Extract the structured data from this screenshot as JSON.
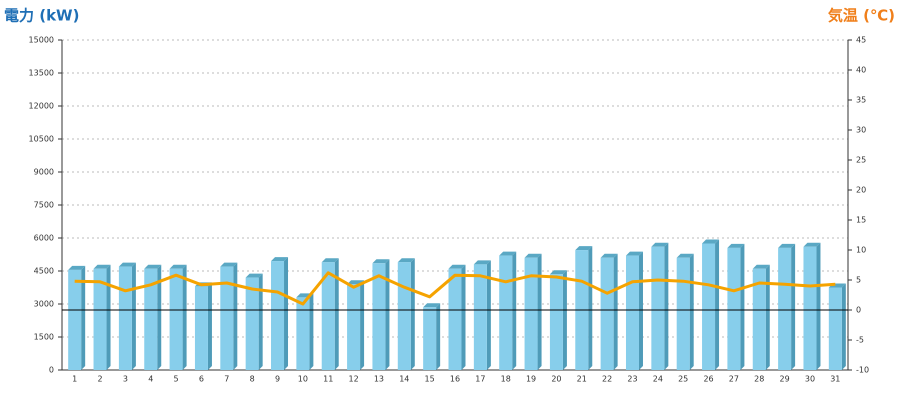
{
  "chart_data": {
    "type": "bar_line",
    "y_label": "電力 (kW)",
    "y2_label": "気温 (℃)",
    "categories": [
      "1",
      "2",
      "3",
      "4",
      "5",
      "6",
      "7",
      "8",
      "9",
      "10",
      "11",
      "12",
      "13",
      "14",
      "15",
      "16",
      "17",
      "18",
      "19",
      "20",
      "21",
      "22",
      "23",
      "24",
      "25",
      "26",
      "27",
      "28",
      "29",
      "30",
      "31"
    ],
    "series": [
      {
        "type": "bar",
        "color": "#87ceeb",
        "values": [
          4550,
          4600,
          4700,
          4600,
          4600,
          3800,
          4700,
          4200,
          4950,
          3300,
          4900,
          3900,
          4850,
          4900,
          2850,
          4600,
          4800,
          5200,
          5100,
          4350,
          5450,
          5100,
          5200,
          5600,
          5100,
          5750,
          5550,
          4600,
          5550,
          5600,
          3750
        ]
      },
      {
        "type": "line",
        "axis": "y2",
        "color": "#f5a300",
        "values": [
          4.8,
          4.7,
          3.2,
          4.2,
          5.8,
          4.2,
          4.5,
          3.5,
          3.0,
          1.0,
          6.2,
          3.8,
          5.7,
          3.8,
          2.2,
          5.8,
          5.7,
          4.7,
          5.7,
          5.5,
          4.8,
          2.8,
          4.7,
          5.0,
          4.8,
          4.2,
          3.2,
          4.5,
          4.3,
          4.0,
          4.3
        ]
      }
    ],
    "ylim": [
      0,
      15000
    ],
    "yticks": [
      0,
      1500,
      3000,
      4500,
      6000,
      7500,
      9000,
      10500,
      12000,
      13500,
      15000
    ],
    "y2lim": [
      -10,
      45
    ],
    "y2ticks": [
      -10,
      -5,
      0,
      5,
      10,
      15,
      20,
      25,
      30,
      35,
      40,
      45
    ],
    "grid": true,
    "y_label_color": "#1f6fb5",
    "y2_label_color": "#f07f1a"
  }
}
